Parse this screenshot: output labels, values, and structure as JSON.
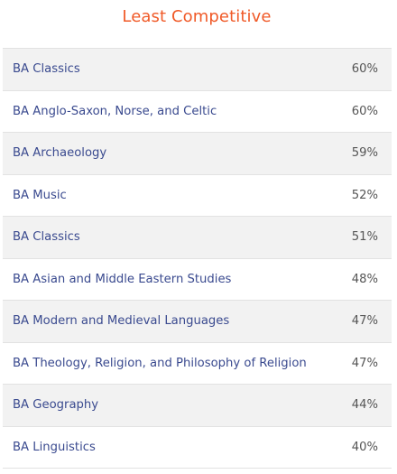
{
  "title": "Least Competitive",
  "colors": {
    "title": "#f05a28",
    "link": "#3a4a8f",
    "value": "#555555",
    "row_alt": "#f2f2f2",
    "divider": "#e2e2e2"
  },
  "rows": [
    {
      "course": "BA Classics",
      "value": "60%"
    },
    {
      "course": "BA Anglo-Saxon, Norse, and Celtic",
      "value": "60%"
    },
    {
      "course": "BA Archaeology",
      "value": "59%"
    },
    {
      "course": "BA Music",
      "value": "52%"
    },
    {
      "course": "BA Classics",
      "value": "51%"
    },
    {
      "course": "BA Asian and Middle Eastern Studies",
      "value": "48%"
    },
    {
      "course": "BA Modern and Medieval Languages",
      "value": "47%"
    },
    {
      "course": "BA Theology, Religion, and Philosophy of Religion",
      "value": "47%"
    },
    {
      "course": "BA Geography",
      "value": "44%"
    },
    {
      "course": "BA Linguistics",
      "value": "40%"
    }
  ]
}
